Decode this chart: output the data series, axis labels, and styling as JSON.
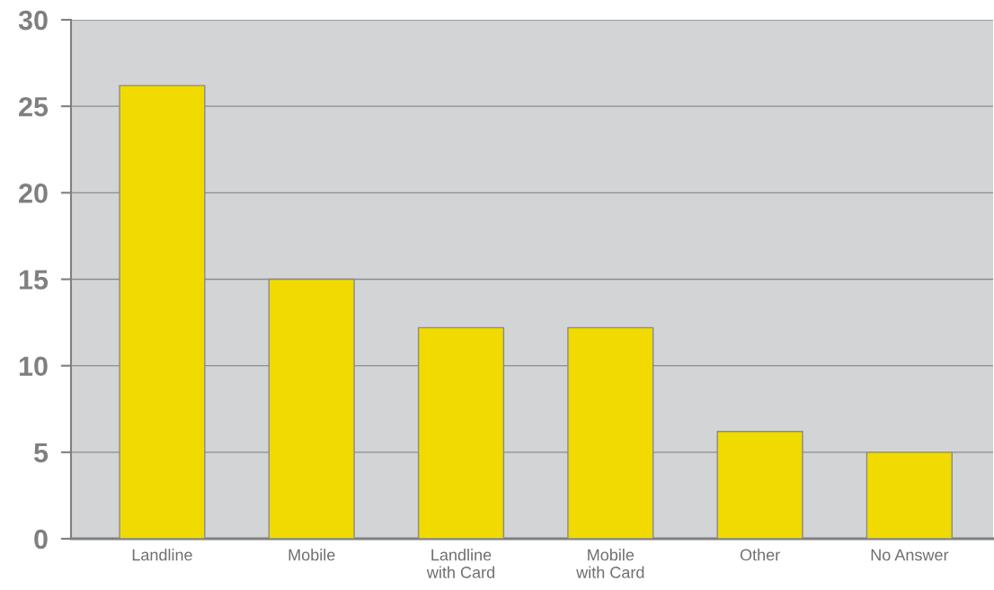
{
  "chart_data": {
    "type": "bar",
    "categories": [
      "Landline",
      "Mobile",
      "Landline\nwith Card",
      "Mobile\nwith Card",
      "Other",
      "No Answer"
    ],
    "values": [
      26.2,
      15,
      12.2,
      12.2,
      6.2,
      5
    ],
    "color": "#f0da00",
    "ylim": [
      0,
      30
    ],
    "yticks": [
      0,
      5,
      10,
      15,
      20,
      25,
      30
    ],
    "grid": "y",
    "legend": false
  }
}
